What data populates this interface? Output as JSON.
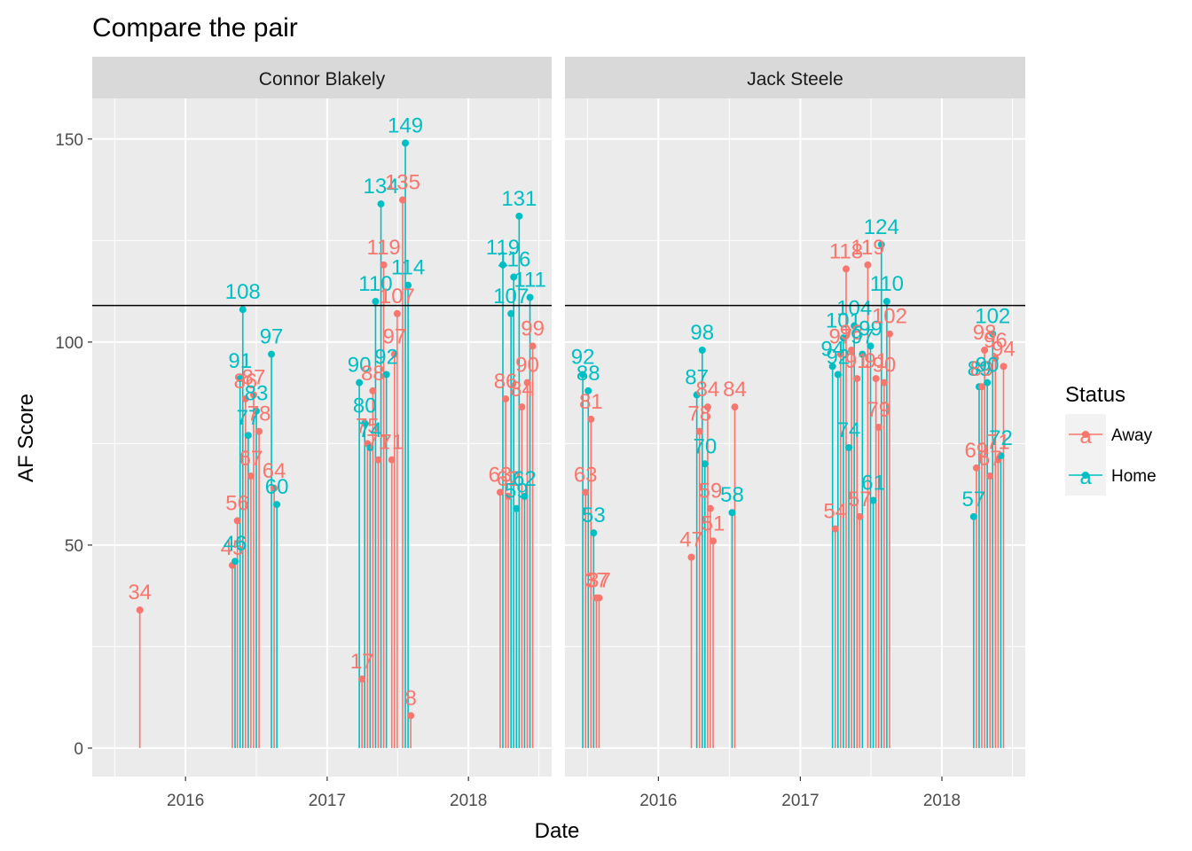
{
  "chart_data": {
    "type": "lollipop",
    "title": "Compare the pair",
    "xlabel": "Date",
    "ylabel": "AF Score",
    "ylim": [
      -7,
      160
    ],
    "yticks": [
      0,
      50,
      100,
      150
    ],
    "xticks": [
      "2016",
      "2017",
      "2018"
    ],
    "xlim": [
      "2015-05-05",
      "2018-08-04"
    ],
    "reference_line": 109,
    "grid": true,
    "colors": {
      "Away": "#F8766D",
      "Home": "#00BFC4"
    },
    "legend": {
      "title": "Status",
      "entries": [
        "Away",
        "Home"
      ],
      "position": "right"
    },
    "facets": [
      {
        "name": "Connor Blakely",
        "points": [
          {
            "date": "2015-09-05",
            "value": 34,
            "status": "Away"
          },
          {
            "date": "2016-05-01",
            "value": 45,
            "status": "Away"
          },
          {
            "date": "2016-05-08",
            "value": 46,
            "status": "Home"
          },
          {
            "date": "2016-05-14",
            "value": 56,
            "status": "Away"
          },
          {
            "date": "2016-05-21",
            "value": 91,
            "status": "Home"
          },
          {
            "date": "2016-05-28",
            "value": 108,
            "status": "Home"
          },
          {
            "date": "2016-06-04",
            "value": 86,
            "status": "Away"
          },
          {
            "date": "2016-06-11",
            "value": 77,
            "status": "Home"
          },
          {
            "date": "2016-06-18",
            "value": 67,
            "status": "Away"
          },
          {
            "date": "2016-06-25",
            "value": 87,
            "status": "Away"
          },
          {
            "date": "2016-07-02",
            "value": 83,
            "status": "Home"
          },
          {
            "date": "2016-07-09",
            "value": 78,
            "status": "Away"
          },
          {
            "date": "2016-08-10",
            "value": 97,
            "status": "Home"
          },
          {
            "date": "2016-08-17",
            "value": 64,
            "status": "Away"
          },
          {
            "date": "2016-08-24",
            "value": 60,
            "status": "Home"
          },
          {
            "date": "2017-03-25",
            "value": 90,
            "status": "Home"
          },
          {
            "date": "2017-04-01",
            "value": 17,
            "status": "Away"
          },
          {
            "date": "2017-04-08",
            "value": 80,
            "status": "Home"
          },
          {
            "date": "2017-04-15",
            "value": 75,
            "status": "Away"
          },
          {
            "date": "2017-04-22",
            "value": 74,
            "status": "Home"
          },
          {
            "date": "2017-04-29",
            "value": 88,
            "status": "Away"
          },
          {
            "date": "2017-05-06",
            "value": 110,
            "status": "Home"
          },
          {
            "date": "2017-05-13",
            "value": 71,
            "status": "Away"
          },
          {
            "date": "2017-05-20",
            "value": 134,
            "status": "Home"
          },
          {
            "date": "2017-05-27",
            "value": 119,
            "status": "Away"
          },
          {
            "date": "2017-06-03",
            "value": 92,
            "status": "Home"
          },
          {
            "date": "2017-06-17",
            "value": 71,
            "status": "Away"
          },
          {
            "date": "2017-06-24",
            "value": 97,
            "status": "Away"
          },
          {
            "date": "2017-07-01",
            "value": 107,
            "status": "Away"
          },
          {
            "date": "2017-07-15",
            "value": 135,
            "status": "Away"
          },
          {
            "date": "2017-07-22",
            "value": 149,
            "status": "Home"
          },
          {
            "date": "2017-07-29",
            "value": 114,
            "status": "Home"
          },
          {
            "date": "2017-08-05",
            "value": 8,
            "status": "Away"
          },
          {
            "date": "2018-03-24",
            "value": 63,
            "status": "Away"
          },
          {
            "date": "2018-03-31",
            "value": 119,
            "status": "Home"
          },
          {
            "date": "2018-04-07",
            "value": 86,
            "status": "Away"
          },
          {
            "date": "2018-04-14",
            "value": 62,
            "status": "Away"
          },
          {
            "date": "2018-04-21",
            "value": 107,
            "status": "Home"
          },
          {
            "date": "2018-04-28",
            "value": 116,
            "status": "Home"
          },
          {
            "date": "2018-05-05",
            "value": 59,
            "status": "Home"
          },
          {
            "date": "2018-05-12",
            "value": 131,
            "status": "Home"
          },
          {
            "date": "2018-05-19",
            "value": 84,
            "status": "Away"
          },
          {
            "date": "2018-05-26",
            "value": 62,
            "status": "Home"
          },
          {
            "date": "2018-06-02",
            "value": 90,
            "status": "Away"
          },
          {
            "date": "2018-06-09",
            "value": 111,
            "status": "Home"
          },
          {
            "date": "2018-06-16",
            "value": 99,
            "status": "Away"
          }
        ]
      },
      {
        "name": "Jack Steele",
        "points": [
          {
            "date": "2015-06-20",
            "value": 92,
            "status": "Home"
          },
          {
            "date": "2015-06-27",
            "value": 63,
            "status": "Away"
          },
          {
            "date": "2015-07-04",
            "value": 88,
            "status": "Home"
          },
          {
            "date": "2015-07-11",
            "value": 81,
            "status": "Away"
          },
          {
            "date": "2015-07-18",
            "value": 53,
            "status": "Home"
          },
          {
            "date": "2015-07-25",
            "value": 37,
            "status": "Away"
          },
          {
            "date": "2015-08-01",
            "value": 37,
            "status": "Away"
          },
          {
            "date": "2016-03-26",
            "value": 47,
            "status": "Away"
          },
          {
            "date": "2016-04-09",
            "value": 87,
            "status": "Home"
          },
          {
            "date": "2016-04-16",
            "value": 78,
            "status": "Away"
          },
          {
            "date": "2016-04-23",
            "value": 98,
            "status": "Home"
          },
          {
            "date": "2016-04-30",
            "value": 70,
            "status": "Home"
          },
          {
            "date": "2016-05-07",
            "value": 84,
            "status": "Away"
          },
          {
            "date": "2016-05-14",
            "value": 59,
            "status": "Away"
          },
          {
            "date": "2016-05-21",
            "value": 51,
            "status": "Away"
          },
          {
            "date": "2016-07-09",
            "value": 58,
            "status": "Home"
          },
          {
            "date": "2016-07-16",
            "value": 84,
            "status": "Away"
          },
          {
            "date": "2017-03-25",
            "value": 94,
            "status": "Home"
          },
          {
            "date": "2017-04-01",
            "value": 54,
            "status": "Away"
          },
          {
            "date": "2017-04-08",
            "value": 92,
            "status": "Home"
          },
          {
            "date": "2017-04-15",
            "value": 97,
            "status": "Away"
          },
          {
            "date": "2017-04-22",
            "value": 101,
            "status": "Home"
          },
          {
            "date": "2017-04-29",
            "value": 118,
            "status": "Away"
          },
          {
            "date": "2017-05-06",
            "value": 74,
            "status": "Home"
          },
          {
            "date": "2017-05-13",
            "value": 98,
            "status": "Away"
          },
          {
            "date": "2017-05-20",
            "value": 104,
            "status": "Home"
          },
          {
            "date": "2017-05-27",
            "value": 91,
            "status": "Away"
          },
          {
            "date": "2017-06-03",
            "value": 57,
            "status": "Away"
          },
          {
            "date": "2017-06-10",
            "value": 97,
            "status": "Home"
          },
          {
            "date": "2017-06-24",
            "value": 119,
            "status": "Away"
          },
          {
            "date": "2017-07-01",
            "value": 99,
            "status": "Home"
          },
          {
            "date": "2017-07-08",
            "value": 61,
            "status": "Home"
          },
          {
            "date": "2017-07-15",
            "value": 91,
            "status": "Away"
          },
          {
            "date": "2017-07-22",
            "value": 79,
            "status": "Away"
          },
          {
            "date": "2017-07-29",
            "value": 124,
            "status": "Home"
          },
          {
            "date": "2017-08-05",
            "value": 90,
            "status": "Away"
          },
          {
            "date": "2017-08-12",
            "value": 110,
            "status": "Home"
          },
          {
            "date": "2017-08-19",
            "value": 102,
            "status": "Away"
          },
          {
            "date": "2018-03-24",
            "value": 57,
            "status": "Home"
          },
          {
            "date": "2018-03-31",
            "value": 69,
            "status": "Away"
          },
          {
            "date": "2018-04-07",
            "value": 89,
            "status": "Home"
          },
          {
            "date": "2018-04-14",
            "value": 89,
            "status": "Away"
          },
          {
            "date": "2018-04-21",
            "value": 98,
            "status": "Away"
          },
          {
            "date": "2018-04-28",
            "value": 90,
            "status": "Home"
          },
          {
            "date": "2018-05-05",
            "value": 67,
            "status": "Away"
          },
          {
            "date": "2018-05-12",
            "value": 102,
            "status": "Home"
          },
          {
            "date": "2018-05-19",
            "value": 96,
            "status": "Away"
          },
          {
            "date": "2018-05-26",
            "value": 71,
            "status": "Away"
          },
          {
            "date": "2018-06-02",
            "value": 72,
            "status": "Home"
          },
          {
            "date": "2018-06-09",
            "value": 94,
            "status": "Away"
          }
        ]
      }
    ]
  }
}
